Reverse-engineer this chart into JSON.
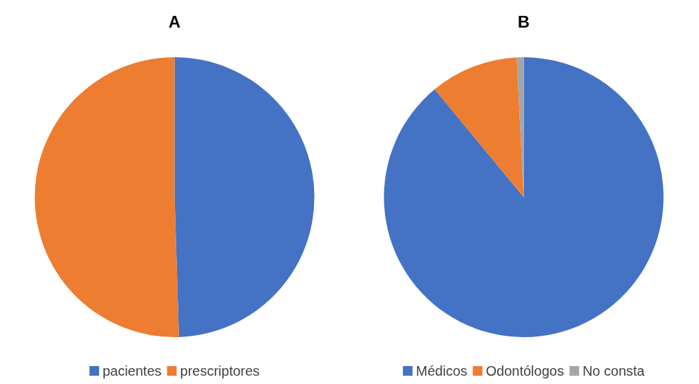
{
  "chart_data": [
    {
      "type": "pie",
      "title": "A",
      "categories": [
        "pacientes",
        "prescriptores"
      ],
      "values": [
        49.5,
        50.5
      ],
      "colors": [
        "#4472c4",
        "#ed7d31"
      ],
      "legend": "bottom"
    },
    {
      "type": "pie",
      "title": "B",
      "categories": [
        "Médicos",
        "Odontólogos",
        "No consta"
      ],
      "values": [
        89,
        10.2,
        0.8
      ],
      "colors": [
        "#4472c4",
        "#ed7d31",
        "#a5a5a5"
      ],
      "legend": "bottom"
    }
  ]
}
